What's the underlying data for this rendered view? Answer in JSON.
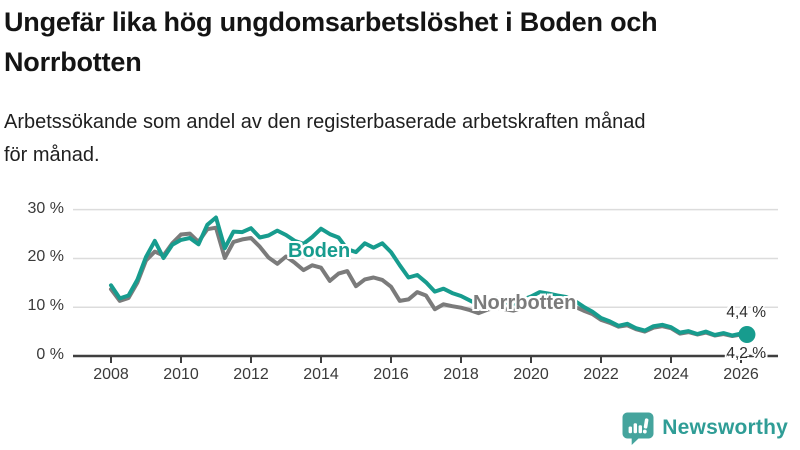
{
  "header": {
    "title": "Ungefär lika hög ungdomsarbetslöshet i Boden och Norrbotten",
    "title_lines": [
      "Ungefär lika hög ungdomsarbetslöshet i Boden och",
      "Norrbotten"
    ],
    "subtitle": "Arbetssökande som andel av den registerbaserade arbetskraften månad för månad.",
    "subtitle_lines": [
      "Arbetssökande som andel av den registerbaserade arbetskraften månad",
      "för månad."
    ]
  },
  "chart_data": {
    "type": "line",
    "title": "Ungefär lika hög ungdomsarbetslöshet i Boden och Norrbotten",
    "subtitle": "Arbetssökande som andel av den registerbaserade arbetskraften månad för månad.",
    "grid": "horizontal",
    "legend_position": "inline-labels",
    "xlim": [
      2007.9,
      2026.9
    ],
    "ylim": [
      0,
      32
    ],
    "xticks": [
      2008,
      2010,
      2012,
      2014,
      2016,
      2018,
      2020,
      2022,
      2024,
      2026
    ],
    "xtick_labels": [
      "2008",
      "2010",
      "2012",
      "2014",
      "2016",
      "2018",
      "2020",
      "2022",
      "2024",
      "2026"
    ],
    "yticks": [
      0,
      10,
      20,
      30
    ],
    "ytick_labels": [
      "0 %",
      "10 %",
      "20 %",
      "30 %"
    ],
    "x": [
      2008,
      2008.25,
      2008.5,
      2008.75,
      2009,
      2009.25,
      2009.5,
      2009.75,
      2010,
      2010.25,
      2010.5,
      2010.75,
      2011,
      2011.25,
      2011.5,
      2011.75,
      2012,
      2012.25,
      2012.5,
      2012.75,
      2013,
      2013.25,
      2013.5,
      2013.75,
      2014,
      2014.25,
      2014.5,
      2014.75,
      2015,
      2015.25,
      2015.5,
      2015.75,
      2016,
      2016.25,
      2016.5,
      2016.75,
      2017,
      2017.25,
      2017.5,
      2017.75,
      2018,
      2018.25,
      2018.5,
      2018.75,
      2019,
      2019.25,
      2019.5,
      2019.75,
      2020,
      2020.25,
      2020.5,
      2020.75,
      2021,
      2021.25,
      2021.5,
      2021.75,
      2022,
      2022.25,
      2022.5,
      2022.75,
      2023,
      2023.25,
      2023.5,
      2023.75,
      2024,
      2024.25,
      2024.5,
      2024.75,
      2025,
      2025.25,
      2025.5,
      2025.75,
      2026,
      2026.17
    ],
    "series": [
      {
        "name": "Boden",
        "color": "#179c8e",
        "end_label": "4,4 %",
        "end_value": 4.4,
        "end_dot": true,
        "values": [
          14.5,
          11.8,
          12.4,
          15.6,
          20.3,
          23.6,
          20.1,
          22.8,
          23.8,
          24.2,
          22.9,
          26.9,
          28.4,
          22.1,
          25.5,
          25.4,
          26.2,
          24.3,
          24.7,
          25.7,
          24.8,
          23.6,
          23.0,
          24.4,
          26.1,
          25.0,
          24.3,
          21.9,
          21.3,
          23.1,
          22.2,
          23.1,
          21.3,
          18.6,
          16.1,
          16.6,
          15.1,
          13.2,
          13.8,
          12.9,
          12.3,
          11.4,
          10.5,
          11.3,
          11.9,
          11.1,
          10.7,
          11.5,
          12.2,
          13.1,
          12.8,
          12.4,
          12.1,
          11.3,
          10.1,
          9.1,
          7.8,
          7.1,
          6.2,
          6.6,
          5.7,
          5.2,
          6.1,
          6.4,
          5.9,
          4.8,
          5.1,
          4.5,
          5.0,
          4.3,
          4.7,
          4.2,
          4.6,
          4.4
        ]
      },
      {
        "name": "Norrbotten",
        "color": "#7b7b7b",
        "end_label": "4,2 %",
        "end_value": 4.2,
        "end_dot": false,
        "values": [
          13.7,
          11.3,
          11.9,
          15.0,
          19.6,
          21.4,
          20.6,
          23.1,
          24.9,
          25.1,
          23.4,
          26.0,
          26.3,
          20.1,
          23.4,
          23.9,
          24.2,
          22.4,
          20.2,
          18.9,
          20.4,
          19.1,
          17.6,
          18.6,
          18.1,
          15.4,
          16.9,
          17.4,
          14.3,
          15.7,
          16.1,
          15.6,
          14.2,
          11.3,
          11.6,
          13.1,
          12.4,
          9.6,
          10.6,
          10.2,
          9.9,
          9.4,
          8.8,
          9.5,
          9.9,
          9.6,
          9.3,
          9.9,
          10.6,
          11.7,
          11.4,
          11.1,
          10.7,
          10.1,
          9.3,
          8.6,
          7.4,
          6.8,
          6.0,
          6.3,
          5.5,
          5.0,
          5.8,
          6.1,
          5.7,
          4.6,
          4.9,
          4.4,
          4.8,
          4.2,
          4.5,
          4.1,
          4.4,
          4.2
        ]
      }
    ]
  },
  "footer": {
    "brand": "Newsworthy"
  }
}
